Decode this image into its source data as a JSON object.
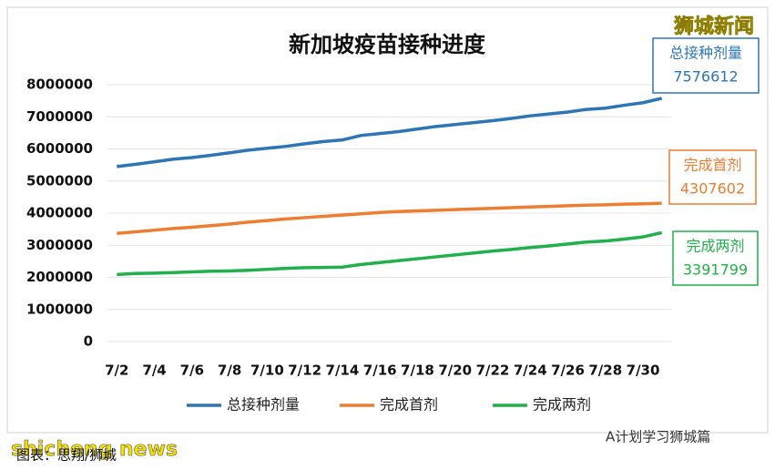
{
  "chart_data": {
    "type": "line",
    "title": "新加坡疫苗接种进度",
    "categories": [
      "7/2",
      null,
      "7/4",
      null,
      "7/6",
      null,
      "7/8",
      null,
      "7/10",
      null,
      "7/12",
      null,
      "7/14",
      null,
      "7/16",
      null,
      "7/18",
      null,
      "7/20",
      null,
      "7/22",
      null,
      "7/24",
      null,
      "7/26",
      null,
      "7/28",
      null,
      "7/30",
      null
    ],
    "series": [
      {
        "name": "总接种剂量",
        "color": "#2e75b6",
        "values": [
          5450000,
          5520000,
          5600000,
          5680000,
          5730000,
          5800000,
          5880000,
          5960000,
          6020000,
          6080000,
          6160000,
          6230000,
          6280000,
          6420000,
          6480000,
          6540000,
          6620000,
          6700000,
          6760000,
          6820000,
          6880000,
          6950000,
          7030000,
          7090000,
          7150000,
          7230000,
          7270000,
          7360000,
          7440000,
          7576612
        ]
      },
      {
        "name": "完成首剂",
        "color": "#ed7d31",
        "values": [
          3370000,
          3420000,
          3470000,
          3520000,
          3560000,
          3610000,
          3660000,
          3720000,
          3770000,
          3820000,
          3860000,
          3900000,
          3940000,
          3980000,
          4020000,
          4050000,
          4070000,
          4090000,
          4110000,
          4130000,
          4150000,
          4170000,
          4190000,
          4210000,
          4230000,
          4250000,
          4260000,
          4280000,
          4290000,
          4307602
        ]
      },
      {
        "name": "完成两剂",
        "color": "#21b04b",
        "values": [
          2090000,
          2120000,
          2130000,
          2150000,
          2170000,
          2190000,
          2200000,
          2220000,
          2250000,
          2280000,
          2300000,
          2310000,
          2320000,
          2400000,
          2460000,
          2520000,
          2580000,
          2640000,
          2700000,
          2760000,
          2820000,
          2870000,
          2930000,
          2980000,
          3040000,
          3100000,
          3130000,
          3190000,
          3260000,
          3391799
        ]
      }
    ],
    "ylim": [
      0,
      8000000
    ],
    "yticks": [
      0,
      1000000,
      2000000,
      3000000,
      4000000,
      5000000,
      6000000,
      7000000,
      8000000
    ],
    "grid": true,
    "annotations": [
      {
        "label": "总接种剂量",
        "value": 7576612,
        "color": "#2e75b6"
      },
      {
        "label": "完成首剂",
        "value": 4307602,
        "color": "#ed7d31"
      },
      {
        "label": "完成两剂",
        "value": 3391799,
        "color": "#21b04b"
      }
    ]
  },
  "watermarks": {
    "brand": "狮城新闻",
    "site": "shicheng news",
    "source": "图表：思翔/狮城",
    "wechat": "A计划学习狮城篇"
  }
}
